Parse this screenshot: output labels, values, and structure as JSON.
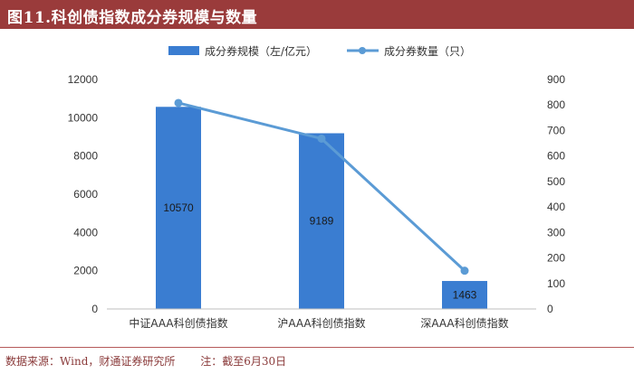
{
  "header": {
    "title": "图11.科创债指数成分券规模与数量"
  },
  "footer": {
    "source": "数据来源：Wind，财通证券研究所",
    "note": "注：截至6月30日"
  },
  "colors": {
    "bar": "#3a7dd1",
    "line": "#5b9bd5",
    "title_bg": "#9a3b3b"
  },
  "chart_data": {
    "type": "bar",
    "categories": [
      "中证AAA科创债指数",
      "沪AAA科创债指数",
      "深AAA科创债指数"
    ],
    "series": [
      {
        "name": "成分券规模（左/亿元）",
        "type": "bar",
        "axis": "left",
        "values": [
          10570,
          9189,
          1463
        ]
      },
      {
        "name": "成分券数量（只）",
        "type": "line",
        "axis": "right",
        "values": [
          808,
          668,
          150
        ]
      }
    ],
    "data_labels": [
      "10570",
      "9189",
      "1463"
    ],
    "y_left": {
      "ylim": [
        0,
        12000
      ],
      "ticks": [
        "0",
        "2000",
        "4000",
        "6000",
        "8000",
        "10000",
        "12000"
      ]
    },
    "y_right": {
      "ylim": [
        0,
        900
      ],
      "ticks": [
        "0",
        "100",
        "200",
        "300",
        "400",
        "500",
        "600",
        "700",
        "800",
        "900"
      ]
    },
    "legend_position": "top",
    "grid": false
  }
}
